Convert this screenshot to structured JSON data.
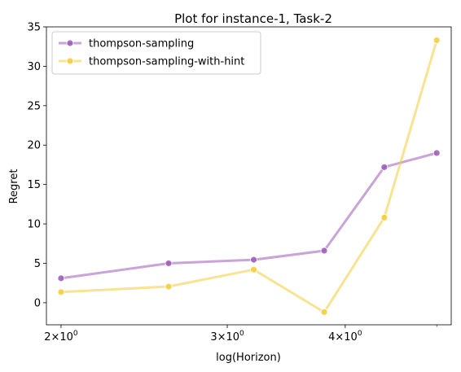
{
  "chart_data": {
    "type": "line",
    "title": "Plot for instance-1, Task-2",
    "xlabel": "log(Horizon)",
    "ylabel": "Regret",
    "xscale": "log",
    "x": [
      2.0,
      2.6,
      3.2,
      3.8,
      4.4,
      5.0
    ],
    "xticks": [
      {
        "value": 2,
        "base": "2",
        "exp": "0"
      },
      {
        "value": 3,
        "base": "3",
        "exp": "0"
      },
      {
        "value": 4,
        "base": "4",
        "exp": "0"
      }
    ],
    "xlim": [
      1.93,
      5.18
    ],
    "ylim": [
      -2.8,
      35
    ],
    "yticks": [
      0,
      5,
      10,
      15,
      20,
      25,
      30,
      35
    ],
    "times_sign": "×10",
    "legend_position": "top-left",
    "grid": false,
    "series": [
      {
        "name": "thompson-sampling",
        "color": "#9a5ab8",
        "values": [
          3.1,
          5.0,
          5.45,
          6.6,
          17.2,
          19.0
        ]
      },
      {
        "name": "thompson-sampling-with-hint",
        "color": "#f2cc3a",
        "values": [
          1.35,
          2.05,
          4.2,
          -1.2,
          10.8,
          33.3
        ]
      }
    ]
  }
}
